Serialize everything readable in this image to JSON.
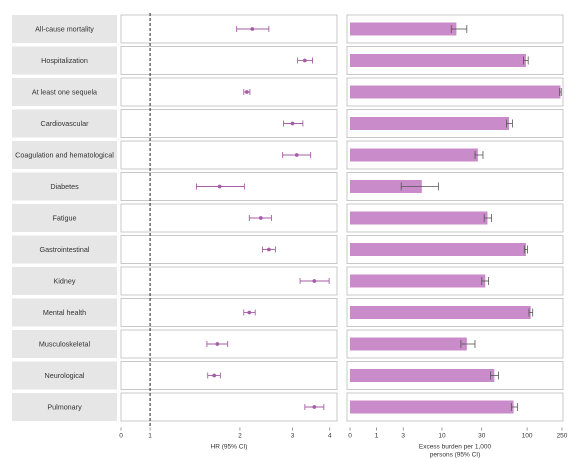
{
  "outcomes": [
    "All-cause mortality",
    "Hospitalization",
    "At least one sequela",
    "Cardiovascular",
    "Coagulation and hematological",
    "Diabetes",
    "Fatigue",
    "Gastrointestinal",
    "Kidney",
    "Mental health",
    "Musculoskeletal",
    "Neurological",
    "Pulmonary"
  ],
  "colors": {
    "accent": "#c98bc9",
    "accent_dark": "#a55fa5",
    "label_bg": "#e6e6e6",
    "panel_border": "#bbbbbb"
  },
  "chart_data": [
    {
      "type": "scatter",
      "xlabel": "HR (95% CI)",
      "xscale": "log",
      "xlim": [
        0.85,
        4.1
      ],
      "xticks": [
        "0",
        "1",
        "2",
        "3",
        "4"
      ],
      "reference_line": 1,
      "series": [
        {
          "points": [
            {
              "category": "All-cause mortality",
              "hr": 2.2,
              "lo": 1.95,
              "hi": 2.5
            },
            {
              "category": "Hospitalization",
              "hr": 3.3,
              "lo": 3.12,
              "hi": 3.5
            },
            {
              "category": "At least one sequela",
              "hr": 2.11,
              "lo": 2.06,
              "hi": 2.16
            },
            {
              "category": "Cardiovascular",
              "hr": 3.0,
              "lo": 2.8,
              "hi": 3.25
            },
            {
              "category": "Coagulation and hematological",
              "hr": 3.1,
              "lo": 2.78,
              "hi": 3.45
            },
            {
              "category": "Diabetes",
              "hr": 1.71,
              "lo": 1.43,
              "hi": 2.07
            },
            {
              "category": "Fatigue",
              "hr": 2.35,
              "lo": 2.15,
              "hi": 2.55
            },
            {
              "category": "Gastrointestinal",
              "hr": 2.5,
              "lo": 2.38,
              "hi": 2.63
            },
            {
              "category": "Kidney",
              "hr": 3.55,
              "lo": 3.18,
              "hi": 3.98
            },
            {
              "category": "Mental health",
              "hr": 2.15,
              "lo": 2.06,
              "hi": 2.25
            },
            {
              "category": "Musculoskeletal",
              "hr": 1.68,
              "lo": 1.55,
              "hi": 1.82
            },
            {
              "category": "Neurological",
              "hr": 1.64,
              "lo": 1.56,
              "hi": 1.72
            },
            {
              "category": "Pulmonary",
              "hr": 3.55,
              "lo": 3.3,
              "hi": 3.82
            }
          ]
        }
      ]
    },
    {
      "type": "bar",
      "xlabel": "Excess burden per 1,000 persons (95% CI)",
      "xscale": "log",
      "xticks": [
        "0",
        "1",
        "3",
        "10",
        "30",
        "100",
        "250"
      ],
      "xlim": [
        0,
        250
      ],
      "categories": [
        "All-cause mortality",
        "Hospitalization",
        "At least one sequela",
        "Cardiovascular",
        "Coagulation and hematological",
        "Diabetes",
        "Fatigue",
        "Gastrointestinal",
        "Kidney",
        "Mental health",
        "Musculoskeletal",
        "Neurological",
        "Pulmonary"
      ],
      "values": [
        15,
        97,
        240,
        62,
        27,
        5.5,
        35,
        97,
        33,
        110,
        20,
        42,
        70
      ],
      "lo": [
        13,
        91,
        235,
        58,
        25,
        2.8,
        32,
        93,
        30,
        105,
        17,
        38,
        66
      ],
      "hi": [
        20,
        103,
        245,
        68,
        31,
        9,
        39,
        101,
        36,
        116,
        25,
        47,
        78
      ]
    }
  ]
}
